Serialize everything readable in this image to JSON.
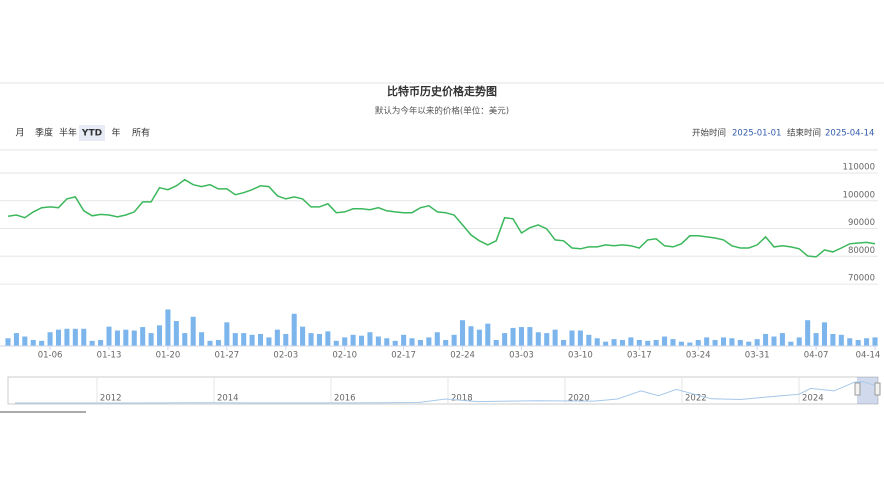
{
  "range_buttons": [
    "月",
    "季度",
    "半年",
    "YTD",
    "年",
    "所有"
  ],
  "selected_button": 3,
  "date_range": {
    "start_label": "开始时间",
    "start": "2025-01-01",
    "end_label": "结束时间",
    "end": "2025-04-14"
  },
  "chart_data": {
    "type": "line",
    "title": "比特币历史价格走势图",
    "subtitle": "默认为今年以来的价格(单位：美元)",
    "categories": [
      null,
      null,
      null,
      null,
      null,
      "01-06",
      null,
      null,
      null,
      null,
      null,
      null,
      "01-13",
      null,
      null,
      null,
      null,
      null,
      null,
      "01-20",
      null,
      null,
      null,
      null,
      null,
      null,
      "01-27",
      null,
      null,
      null,
      null,
      null,
      null,
      "02-03",
      null,
      null,
      null,
      null,
      null,
      null,
      "02-10",
      null,
      null,
      null,
      null,
      null,
      null,
      "02-17",
      null,
      null,
      null,
      null,
      null,
      null,
      "02-24",
      null,
      null,
      null,
      null,
      null,
      null,
      "03-03",
      null,
      null,
      null,
      null,
      null,
      null,
      "03-10",
      null,
      null,
      null,
      null,
      null,
      null,
      "03-17",
      null,
      null,
      null,
      null,
      null,
      null,
      "03-24",
      null,
      null,
      null,
      null,
      null,
      null,
      "03-31",
      null,
      null,
      null,
      null,
      null,
      null,
      "04-07",
      null,
      null,
      null,
      null,
      null,
      null,
      "04-14"
    ],
    "values": [
      94400,
      94900,
      93900,
      96000,
      97500,
      97800,
      97500,
      100700,
      101400,
      96400,
      94600,
      95100,
      94900,
      94200,
      94900,
      96000,
      99600,
      99600,
      104700,
      104000,
      105400,
      107600,
      105800,
      105100,
      105800,
      104300,
      104300,
      102200,
      102900,
      104000,
      105400,
      105100,
      101800,
      100700,
      101400,
      100700,
      97800,
      97800,
      98900,
      95700,
      96000,
      97100,
      97100,
      96800,
      97500,
      96400,
      96000,
      95700,
      95700,
      97500,
      98200,
      96000,
      95700,
      94900,
      91300,
      87700,
      85600,
      84100,
      85600,
      93900,
      93500,
      88400,
      90300,
      91300,
      89900,
      85900,
      85600,
      83000,
      82700,
      83400,
      83400,
      84100,
      83800,
      84100,
      83800,
      83000,
      85900,
      86300,
      83800,
      83400,
      84500,
      87400,
      87400,
      87000,
      86600,
      85900,
      83800,
      83000,
      83000,
      84100,
      87000,
      83400,
      83800,
      83400,
      82700,
      80100,
      79800,
      82300,
      81600,
      83000,
      84500,
      84800,
      85000,
      84500
    ],
    "color": "#3cb85c",
    "ylim": [
      65700,
      118300
    ],
    "yticks": [
      70000,
      80000,
      90000,
      100000,
      110000
    ],
    "grid": true,
    "volume": {
      "type": "bar",
      "color": "#7cb5ec",
      "ylim": [
        0,
        100
      ],
      "values": [
        18,
        30,
        22,
        14,
        12,
        32,
        38,
        40,
        40,
        40,
        12,
        14,
        45,
        36,
        38,
        36,
        44,
        30,
        48,
        85,
        58,
        30,
        68,
        32,
        12,
        14,
        55,
        30,
        30,
        26,
        28,
        20,
        38,
        28,
        75,
        45,
        30,
        28,
        34,
        12,
        20,
        26,
        24,
        32,
        22,
        18,
        12,
        26,
        18,
        14,
        20,
        32,
        14,
        26,
        60,
        46,
        38,
        52,
        14,
        30,
        42,
        44,
        44,
        32,
        30,
        38,
        14,
        36,
        36,
        26,
        18,
        10,
        16,
        14,
        20,
        14,
        12,
        14,
        22,
        16,
        10,
        8,
        14,
        20,
        14,
        20,
        18,
        14,
        10,
        16,
        28,
        22,
        30,
        10,
        20,
        60,
        30,
        55,
        28,
        26,
        18,
        14,
        18,
        20
      ]
    },
    "navigator": {
      "type": "line",
      "color": "#a6c8ea",
      "x": [
        2010.6,
        2011.5,
        2012.5,
        2013.9,
        2014.5,
        2015.5,
        2016.5,
        2017.5,
        2017.96,
        2018.5,
        2019.5,
        2020.5,
        2020.9,
        2021.3,
        2021.6,
        2021.9,
        2022.5,
        2023,
        2023.5,
        2024,
        2024.2,
        2024.6,
        2024.95,
        2025.1,
        2025.29
      ],
      "values": [
        0,
        5,
        10,
        1000,
        600,
        250,
        650,
        2500,
        19000,
        6500,
        11000,
        9200,
        19000,
        58000,
        35000,
        65000,
        20000,
        16800,
        30000,
        42000,
        70000,
        58000,
        100000,
        102000,
        84500
      ],
      "xlim": [
        2010.48,
        2025.35
      ],
      "ylim": [
        0,
        110000
      ],
      "xticks": [
        2012,
        2014,
        2016,
        2018,
        2020,
        2022,
        2024
      ]
    }
  }
}
